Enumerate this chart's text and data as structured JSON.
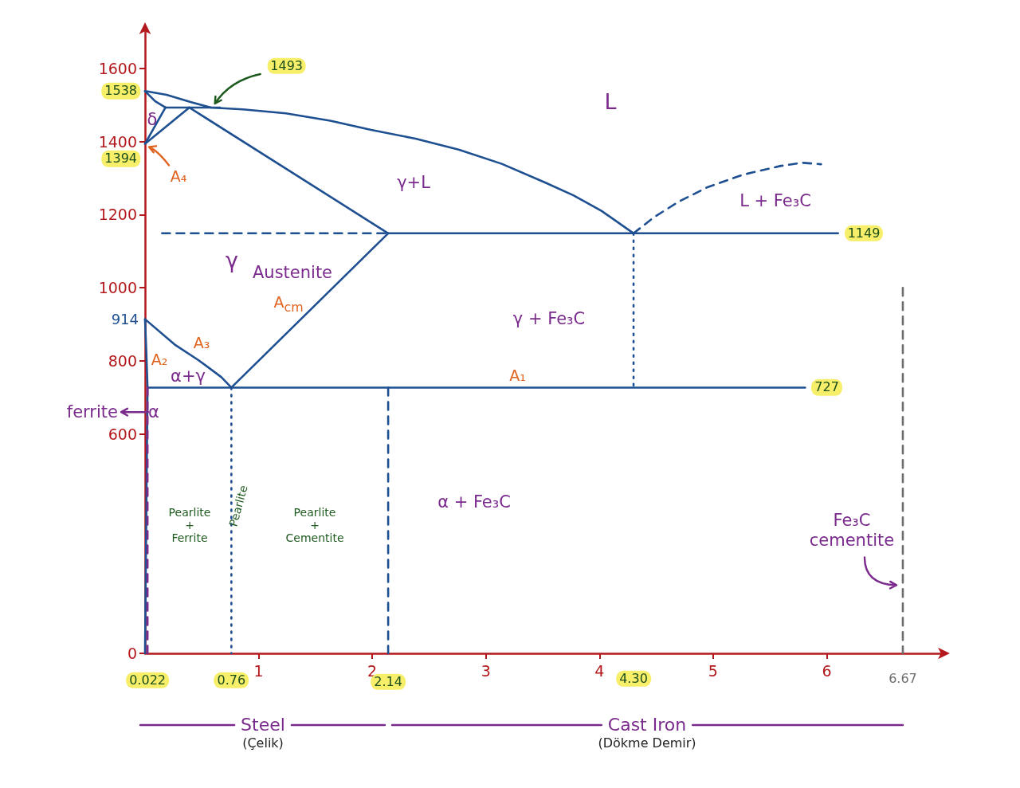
{
  "chart_data": {
    "type": "line",
    "xlim": [
      0,
      7
    ],
    "ylim": [
      0,
      1700
    ],
    "xticks": [
      1,
      2,
      3,
      4,
      5,
      6
    ],
    "yticks": [
      0,
      600,
      800,
      1000,
      1200,
      1400,
      1600
    ],
    "grid": false,
    "marker": "none",
    "series": [
      {
        "color": "#1d4f91",
        "line_style": "solid",
        "x": [
          0,
          0.19,
          0.4,
          0.58,
          0.86,
          1.24,
          1.63,
          1.99,
          2.38,
          2.76,
          3.14,
          3.52,
          3.77,
          4.02,
          4.3
        ],
        "values": [
          1538,
          1528,
          1508,
          1493,
          1488,
          1477,
          1457,
          1432,
          1408,
          1378,
          1339,
          1288,
          1253,
          1210,
          1149
        ]
      },
      {
        "color": "#1d4f91",
        "line_style": "solid",
        "x": [
          0,
          0.09,
          0.18
        ],
        "values": [
          1538,
          1510,
          1493
        ]
      },
      {
        "color": "#1d4f91",
        "line_style": "solid",
        "x": [
          0.18,
          0.66
        ],
        "values": [
          1493,
          1493
        ]
      },
      {
        "color": "#1d4f91",
        "line_style": "solid",
        "x": [
          0,
          0.18
        ],
        "values": [
          1394,
          1493
        ]
      },
      {
        "color": "#1d4f91",
        "line_style": "solid",
        "x": [
          0,
          0.39
        ],
        "values": [
          1394,
          1493
        ]
      },
      {
        "color": "#1d4f91",
        "line_style": "solid",
        "x": [
          0.39,
          2.14
        ],
        "values": [
          1493,
          1149
        ]
      },
      {
        "color": "#1d4f91",
        "line_style": "solid",
        "x": [
          2.14,
          6.1
        ],
        "values": [
          1149,
          1149
        ]
      },
      {
        "color": "#1d4f91",
        "line_style": "dashed",
        "x": [
          4.3,
          4.48,
          4.7,
          4.95,
          5.26,
          5.59,
          5.78,
          5.95
        ],
        "values": [
          1149,
          1193,
          1236,
          1275,
          1309,
          1333,
          1342,
          1338
        ]
      },
      {
        "color": "#1d4f91",
        "line_style": "dashed",
        "x": [
          0.15,
          2.14
        ],
        "values": [
          1149,
          1149
        ]
      },
      {
        "color": "#1d4f91",
        "line_style": "solid",
        "x": [
          0.76,
          2.14
        ],
        "values": [
          727,
          1149
        ]
      },
      {
        "color": "#1d4f91",
        "line_style": "solid",
        "x": [
          0,
          0.26,
          0.47,
          0.67,
          0.76
        ],
        "values": [
          914,
          845,
          802,
          756,
          727
        ]
      },
      {
        "color": "#1d4f91",
        "line_style": "solid",
        "x": [
          0,
          0.012,
          0.022,
          0.012,
          0
        ],
        "values": [
          914,
          820,
          727,
          400,
          0
        ]
      },
      {
        "color": "#1d4f91",
        "line_style": "solid",
        "x": [
          0.022,
          5.81
        ],
        "values": [
          727,
          727
        ]
      },
      {
        "color": "#1d4f91",
        "line_style": "dotted",
        "x": [
          4.3,
          4.3
        ],
        "values": [
          1149,
          727
        ]
      },
      {
        "color": "#1d4f91",
        "line_style": "dotted",
        "x": [
          0.76,
          0.76
        ],
        "values": [
          727,
          0
        ]
      },
      {
        "color": "#7a2a8c",
        "line_style": "dashed",
        "x": [
          0.022,
          0.022
        ],
        "values": [
          727,
          0
        ]
      },
      {
        "color": "#1d4f91",
        "line_style": "dashed",
        "x": [
          2.14,
          2.14
        ],
        "values": [
          727,
          0
        ]
      },
      {
        "color": "#6e6e6e",
        "line_style": "dashed",
        "x": [
          6.67,
          6.67
        ],
        "values": [
          1000,
          0
        ]
      }
    ],
    "annotations": [
      {
        "text": "1538",
        "x": 0,
        "y": 1538
      },
      {
        "text": "1394",
        "x": 0,
        "y": 1394
      },
      {
        "text": "914",
        "x": 0,
        "y": 914
      },
      {
        "text": "1493",
        "x": 0.58,
        "y": 1493
      },
      {
        "text": "A₄",
        "x": 0,
        "y": 1394
      },
      "δ",
      "L",
      "γ+L",
      "L + Fe₃C",
      {
        "text": "1149",
        "x": 6.1,
        "y": 1149
      },
      "γ",
      "Austenite",
      "A$_{cm}$",
      "γ + Fe₃C",
      "A₃",
      "A₂",
      "α+γ",
      "α",
      {
        "text": "ferrite",
        "x": 0,
        "y": 660
      },
      {
        "text": "A₁",
        "x": 3.28,
        "y": 727
      },
      {
        "text": "727",
        "x": 5.81,
        "y": 727
      },
      "α + Fe₃C",
      "Pearlite\n+\nFerrite",
      "Pearlite",
      "Pearlite\n+\nCementite",
      {
        "text": "Fe₃C\ncementite",
        "x": 6.67,
        "y": 180
      },
      {
        "text": "0.022",
        "x": 0.022,
        "y": 0
      },
      {
        "text": "0.76",
        "x": 0.76,
        "y": 0
      },
      {
        "text": "2.14",
        "x": 2.14,
        "y": 0
      },
      "4.30",
      {
        "text": "6.67",
        "x": 6.67,
        "y": 0
      },
      "Steel\n(Çelik)",
      "Cast Iron\n(Dökme Demir)"
    ]
  }
}
